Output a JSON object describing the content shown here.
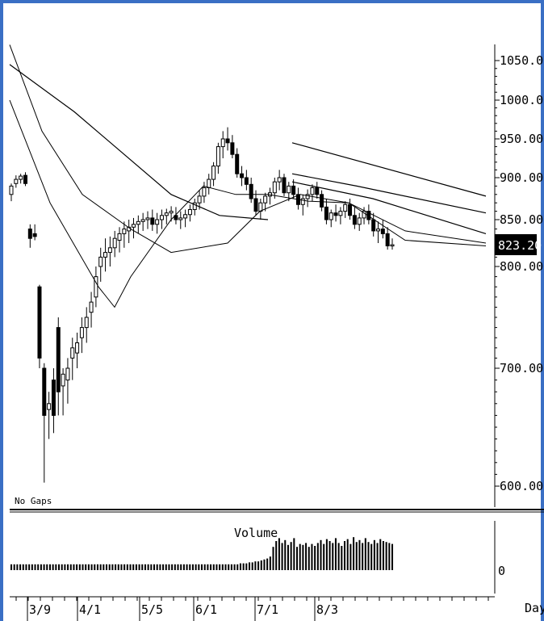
{
  "chart_data": [
    {
      "type": "candlestick",
      "title": "",
      "annotation": "No Gaps",
      "price_axis": {
        "ticks": [
          1050,
          1000,
          950,
          900,
          850,
          800,
          700,
          600
        ],
        "tick_labels": [
          "1050.00",
          "1000.00",
          "950.00",
          "900.00",
          "850.00",
          "800.00",
          "700.00",
          "600.00"
        ],
        "ylim": [
          585,
          1075
        ]
      },
      "last_price": {
        "value": 823.2,
        "label": "823.20"
      },
      "x_axis": {
        "xlabel": "Day",
        "ticks": [
          "3/9",
          "4/1",
          "5/5",
          "6/1",
          "7/1",
          "8/3"
        ]
      },
      "candles": [
        {
          "o": 880,
          "h": 893,
          "l": 872,
          "c": 890
        },
        {
          "o": 893,
          "h": 903,
          "l": 888,
          "c": 898
        },
        {
          "o": 898,
          "h": 905,
          "l": 893,
          "c": 902
        },
        {
          "o": 903,
          "h": 907,
          "l": 890,
          "c": 893
        },
        {
          "o": 840,
          "h": 845,
          "l": 820,
          "c": 830
        },
        {
          "o": 835,
          "h": 845,
          "l": 828,
          "c": 832
        },
        {
          "o": 780,
          "h": 782,
          "l": 700,
          "c": 710
        },
        {
          "o": 700,
          "h": 705,
          "l": 603,
          "c": 660
        },
        {
          "o": 665,
          "h": 680,
          "l": 640,
          "c": 670
        },
        {
          "o": 690,
          "h": 700,
          "l": 645,
          "c": 660
        },
        {
          "o": 740,
          "h": 750,
          "l": 660,
          "c": 680
        },
        {
          "o": 685,
          "h": 700,
          "l": 660,
          "c": 695
        },
        {
          "o": 690,
          "h": 710,
          "l": 670,
          "c": 700
        },
        {
          "o": 710,
          "h": 730,
          "l": 690,
          "c": 720
        },
        {
          "o": 715,
          "h": 735,
          "l": 700,
          "c": 725
        },
        {
          "o": 730,
          "h": 750,
          "l": 715,
          "c": 740
        },
        {
          "o": 740,
          "h": 760,
          "l": 725,
          "c": 750
        },
        {
          "o": 755,
          "h": 775,
          "l": 740,
          "c": 765
        },
        {
          "o": 770,
          "h": 800,
          "l": 760,
          "c": 790
        },
        {
          "o": 800,
          "h": 820,
          "l": 785,
          "c": 810
        },
        {
          "o": 810,
          "h": 830,
          "l": 795,
          "c": 815
        },
        {
          "o": 815,
          "h": 832,
          "l": 800,
          "c": 820
        },
        {
          "o": 820,
          "h": 838,
          "l": 810,
          "c": 830
        },
        {
          "o": 828,
          "h": 842,
          "l": 815,
          "c": 835
        },
        {
          "o": 835,
          "h": 848,
          "l": 820,
          "c": 840
        },
        {
          "o": 838,
          "h": 850,
          "l": 825,
          "c": 842
        },
        {
          "o": 842,
          "h": 852,
          "l": 830,
          "c": 845
        },
        {
          "o": 845,
          "h": 855,
          "l": 835,
          "c": 848
        },
        {
          "o": 848,
          "h": 858,
          "l": 838,
          "c": 850
        },
        {
          "o": 850,
          "h": 860,
          "l": 840,
          "c": 852
        },
        {
          "o": 852,
          "h": 862,
          "l": 838,
          "c": 845
        },
        {
          "o": 845,
          "h": 858,
          "l": 835,
          "c": 850
        },
        {
          "o": 850,
          "h": 862,
          "l": 840,
          "c": 855
        },
        {
          "o": 855,
          "h": 863,
          "l": 845,
          "c": 858
        },
        {
          "o": 858,
          "h": 866,
          "l": 848,
          "c": 860
        },
        {
          "o": 855,
          "h": 865,
          "l": 845,
          "c": 850
        },
        {
          "o": 850,
          "h": 860,
          "l": 840,
          "c": 852
        },
        {
          "o": 852,
          "h": 862,
          "l": 842,
          "c": 856
        },
        {
          "o": 856,
          "h": 868,
          "l": 848,
          "c": 862
        },
        {
          "o": 862,
          "h": 875,
          "l": 855,
          "c": 870
        },
        {
          "o": 870,
          "h": 885,
          "l": 862,
          "c": 878
        },
        {
          "o": 878,
          "h": 895,
          "l": 870,
          "c": 888
        },
        {
          "o": 888,
          "h": 905,
          "l": 880,
          "c": 898
        },
        {
          "o": 898,
          "h": 920,
          "l": 890,
          "c": 915
        },
        {
          "o": 915,
          "h": 945,
          "l": 905,
          "c": 940
        },
        {
          "o": 940,
          "h": 960,
          "l": 925,
          "c": 950
        },
        {
          "o": 950,
          "h": 965,
          "l": 935,
          "c": 945
        },
        {
          "o": 945,
          "h": 955,
          "l": 925,
          "c": 930
        },
        {
          "o": 930,
          "h": 938,
          "l": 900,
          "c": 905
        },
        {
          "o": 905,
          "h": 915,
          "l": 890,
          "c": 900
        },
        {
          "o": 900,
          "h": 910,
          "l": 885,
          "c": 892
        },
        {
          "o": 892,
          "h": 900,
          "l": 870,
          "c": 875
        },
        {
          "o": 875,
          "h": 885,
          "l": 855,
          "c": 860
        },
        {
          "o": 860,
          "h": 875,
          "l": 850,
          "c": 870
        },
        {
          "o": 870,
          "h": 882,
          "l": 860,
          "c": 878
        },
        {
          "o": 878,
          "h": 888,
          "l": 868,
          "c": 882
        },
        {
          "o": 882,
          "h": 900,
          "l": 875,
          "c": 895
        },
        {
          "o": 895,
          "h": 910,
          "l": 885,
          "c": 900
        },
        {
          "o": 900,
          "h": 905,
          "l": 878,
          "c": 882
        },
        {
          "o": 882,
          "h": 895,
          "l": 872,
          "c": 890
        },
        {
          "o": 890,
          "h": 898,
          "l": 875,
          "c": 880
        },
        {
          "o": 880,
          "h": 888,
          "l": 862,
          "c": 868
        },
        {
          "o": 868,
          "h": 880,
          "l": 855,
          "c": 875
        },
        {
          "o": 875,
          "h": 886,
          "l": 865,
          "c": 880
        },
        {
          "o": 880,
          "h": 892,
          "l": 872,
          "c": 888
        },
        {
          "o": 888,
          "h": 895,
          "l": 875,
          "c": 880
        },
        {
          "o": 880,
          "h": 885,
          "l": 860,
          "c": 865
        },
        {
          "o": 865,
          "h": 875,
          "l": 845,
          "c": 850
        },
        {
          "o": 850,
          "h": 862,
          "l": 842,
          "c": 858
        },
        {
          "o": 858,
          "h": 868,
          "l": 848,
          "c": 855
        },
        {
          "o": 855,
          "h": 865,
          "l": 845,
          "c": 860
        },
        {
          "o": 860,
          "h": 872,
          "l": 852,
          "c": 868
        },
        {
          "o": 868,
          "h": 875,
          "l": 850,
          "c": 855
        },
        {
          "o": 855,
          "h": 865,
          "l": 840,
          "c": 845
        },
        {
          "o": 845,
          "h": 858,
          "l": 838,
          "c": 852
        },
        {
          "o": 852,
          "h": 865,
          "l": 845,
          "c": 860
        },
        {
          "o": 860,
          "h": 868,
          "l": 845,
          "c": 850
        },
        {
          "o": 850,
          "h": 858,
          "l": 832,
          "c": 838
        },
        {
          "o": 838,
          "h": 848,
          "l": 825,
          "c": 840
        },
        {
          "o": 840,
          "h": 850,
          "l": 830,
          "c": 835
        },
        {
          "o": 835,
          "h": 842,
          "l": 818,
          "c": 822
        },
        {
          "o": 822,
          "h": 830,
          "l": 818,
          "c": 823.2
        }
      ],
      "moving_averages": [
        {
          "values": [
            [
              0,
              1070
            ],
            [
              40,
              960
            ],
            [
              90,
              880
            ],
            [
              150,
              840
            ],
            [
              200,
              815
            ],
            [
              270,
              825
            ],
            [
              310,
              860
            ],
            [
              360,
              880
            ],
            [
              420,
              870
            ],
            [
              490,
              828
            ],
            [
              590,
              822
            ]
          ]
        },
        {
          "values": [
            [
              0,
              1000
            ],
            [
              50,
              870
            ],
            [
              110,
              780
            ],
            [
              130,
              760
            ],
            [
              150,
              790
            ],
            [
              200,
              850
            ],
            [
              240,
              890
            ],
            [
              280,
              880
            ],
            [
              320,
              880
            ],
            [
              370,
              872
            ],
            [
              420,
              870
            ],
            [
              490,
              838
            ],
            [
              590,
              825
            ]
          ]
        }
      ],
      "long_term_lines": [
        {
          "values": [
            [
              0,
              1045
            ],
            [
              80,
              985
            ],
            [
              200,
              880
            ],
            [
              260,
              855
            ],
            [
              320,
              850
            ]
          ]
        },
        {
          "values": [
            [
              350,
              945
            ],
            [
              590,
              878
            ]
          ]
        },
        {
          "values": [
            [
              350,
              905
            ],
            [
              430,
              890
            ],
            [
              590,
              858
            ]
          ]
        },
        {
          "values": [
            [
              350,
              895
            ],
            [
              450,
              875
            ],
            [
              590,
              835
            ]
          ]
        }
      ]
    },
    {
      "type": "bar",
      "title": "Volume",
      "y_tick_labels": [
        "0"
      ],
      "values": [
        6,
        6,
        6,
        6,
        6,
        6,
        6,
        6,
        6,
        6,
        6,
        6,
        6,
        6,
        6,
        6,
        6,
        6,
        6,
        6,
        6,
        6,
        6,
        6,
        6,
        6,
        6,
        6,
        6,
        6,
        6,
        6,
        6,
        6,
        6,
        6,
        6,
        6,
        6,
        6,
        6,
        6,
        6,
        6,
        6,
        6,
        6,
        6,
        6,
        6,
        6,
        6,
        6,
        6,
        6,
        6,
        6,
        6,
        6,
        6,
        6,
        6,
        6,
        6,
        6,
        6,
        6,
        6,
        6,
        6,
        6,
        6,
        6,
        6,
        6,
        6,
        6,
        7,
        7,
        7,
        8,
        8,
        9,
        9,
        10,
        11,
        12,
        14,
        24,
        30,
        33,
        28,
        31,
        26,
        29,
        33,
        24,
        27,
        26,
        28,
        24,
        27,
        25,
        28,
        31,
        27,
        32,
        30,
        28,
        33,
        28,
        25,
        30,
        32,
        27,
        34,
        29,
        31,
        28,
        33,
        29,
        27,
        31,
        28,
        32,
        30,
        29,
        28,
        27
      ]
    }
  ]
}
